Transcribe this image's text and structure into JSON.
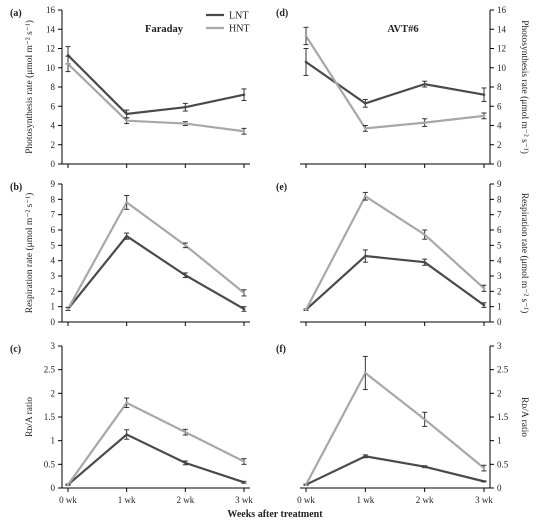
{
  "colors": {
    "LNT": "#4a4a4a",
    "HNT": "#a8a8a8",
    "axis": "#000000"
  },
  "legend": {
    "entries": [
      "LNT",
      "HNT"
    ]
  },
  "x_axis_label": "Weeks after treatment",
  "chart_data": [
    {
      "panel": "(a)",
      "title": "Faraday",
      "type": "line",
      "categories": [
        "0 wk",
        "1 wk",
        "2 wk",
        "3 wk"
      ],
      "ylabel": "Photosynthesis rate (μmol m⁻² s⁻¹)",
      "ylim": [
        0,
        16
      ],
      "yticks": [
        0,
        2,
        4,
        6,
        8,
        10,
        12,
        14,
        16
      ],
      "ytick_labels": [
        "0",
        "2",
        "4",
        "6",
        "8",
        "10",
        "12",
        "14",
        "16"
      ],
      "ylabel_side": "left",
      "series": [
        {
          "name": "LNT",
          "values": [
            11.3,
            5.2,
            5.9,
            7.2
          ],
          "errors": [
            0.9,
            0.4,
            0.4,
            0.6
          ]
        },
        {
          "name": "HNT",
          "values": [
            10.4,
            4.5,
            4.2,
            3.4
          ],
          "errors": [
            0.8,
            0.3,
            0.2,
            0.3
          ]
        }
      ]
    },
    {
      "panel": "(d)",
      "title": "AVT#6",
      "type": "line",
      "categories": [
        "0 wk",
        "1 wk",
        "2 wk",
        "3 wk"
      ],
      "ylabel": "Photosynthesis rate (μmol m⁻² s⁻¹)",
      "ylim": [
        0,
        16
      ],
      "yticks": [
        0,
        2,
        4,
        6,
        8,
        10,
        12,
        14,
        16
      ],
      "ytick_labels": [
        "0",
        "2",
        "4",
        "6",
        "8",
        "10",
        "12",
        "14",
        "16"
      ],
      "ylabel_side": "right",
      "series": [
        {
          "name": "LNT",
          "values": [
            10.6,
            6.3,
            8.3,
            7.2
          ],
          "errors": [
            1.4,
            0.4,
            0.3,
            0.7
          ]
        },
        {
          "name": "HNT",
          "values": [
            13.3,
            3.7,
            4.3,
            5.0
          ],
          "errors": [
            0.9,
            0.3,
            0.4,
            0.3
          ]
        }
      ]
    },
    {
      "panel": "(b)",
      "title": "",
      "type": "line",
      "categories": [
        "0 wk",
        "1 wk",
        "2 wk",
        "3 wk"
      ],
      "ylabel": "Respiration rate (μmol m⁻² s⁻¹)",
      "ylim": [
        0,
        9
      ],
      "yticks": [
        0,
        1,
        2,
        3,
        4,
        5,
        6,
        7,
        8,
        9
      ],
      "ytick_labels": [
        "0",
        "1",
        "2",
        "3",
        "4",
        "5",
        "6",
        "7",
        "8",
        "9"
      ],
      "ylabel_side": "left",
      "series": [
        {
          "name": "LNT",
          "values": [
            0.85,
            5.6,
            3.05,
            0.85
          ],
          "errors": [
            0.1,
            0.2,
            0.15,
            0.15
          ]
        },
        {
          "name": "HNT",
          "values": [
            0.85,
            7.8,
            5.0,
            1.9
          ],
          "errors": [
            0.1,
            0.45,
            0.15,
            0.2
          ]
        }
      ]
    },
    {
      "panel": "(e)",
      "title": "",
      "type": "line",
      "categories": [
        "0 wk",
        "1 wk",
        "2 wk",
        "3 wk"
      ],
      "ylabel": "Respiration rate (μmol m⁻² s⁻¹)",
      "ylim": [
        0,
        9
      ],
      "yticks": [
        0,
        1,
        2,
        3,
        4,
        5,
        6,
        7,
        8,
        9
      ],
      "ytick_labels": [
        "0",
        "1",
        "2",
        "3",
        "4",
        "5",
        "6",
        "7",
        "8",
        "9"
      ],
      "ylabel_side": "right",
      "series": [
        {
          "name": "LNT",
          "values": [
            0.8,
            4.3,
            3.9,
            1.1
          ],
          "errors": [
            0.05,
            0.4,
            0.2,
            0.15
          ]
        },
        {
          "name": "HNT",
          "values": [
            0.8,
            8.2,
            5.7,
            2.2
          ],
          "errors": [
            0.05,
            0.25,
            0.3,
            0.2
          ]
        }
      ]
    },
    {
      "panel": "(c)",
      "title": "",
      "type": "line",
      "categories": [
        "0 wk",
        "1 wk",
        "2 wk",
        "3 wk"
      ],
      "ylabel": "Rᴅ/A ratio",
      "ylim": [
        0,
        3
      ],
      "yticks": [
        0,
        0.5,
        1,
        1.5,
        2,
        2.5,
        3
      ],
      "ytick_labels": [
        "0",
        "0.5",
        "1",
        "1.5",
        "2",
        "2.5",
        "3"
      ],
      "ylabel_side": "left",
      "series": [
        {
          "name": "LNT",
          "values": [
            0.07,
            1.13,
            0.53,
            0.12
          ],
          "errors": [
            0.01,
            0.1,
            0.04,
            0.02
          ]
        },
        {
          "name": "HNT",
          "values": [
            0.07,
            1.8,
            1.18,
            0.56
          ],
          "errors": [
            0.01,
            0.1,
            0.06,
            0.06
          ]
        }
      ]
    },
    {
      "panel": "(f)",
      "title": "",
      "type": "line",
      "categories": [
        "0 wk",
        "1 wk",
        "2 wk",
        "3 wk"
      ],
      "ylabel": "Rᴅ/A ratio",
      "ylim": [
        0,
        3
      ],
      "yticks": [
        0,
        0.5,
        1,
        1.5,
        2,
        2.5,
        3
      ],
      "ytick_labels": [
        "0",
        "0.5",
        "1",
        "1.5",
        "2",
        "2.5",
        "3"
      ],
      "ylabel_side": "right",
      "series": [
        {
          "name": "LNT",
          "values": [
            0.07,
            0.67,
            0.45,
            0.14
          ],
          "errors": [
            0.01,
            0.03,
            0.02,
            0.01
          ]
        },
        {
          "name": "HNT",
          "values": [
            0.07,
            2.43,
            1.45,
            0.42
          ],
          "errors": [
            0.01,
            0.35,
            0.15,
            0.06
          ]
        }
      ]
    }
  ]
}
